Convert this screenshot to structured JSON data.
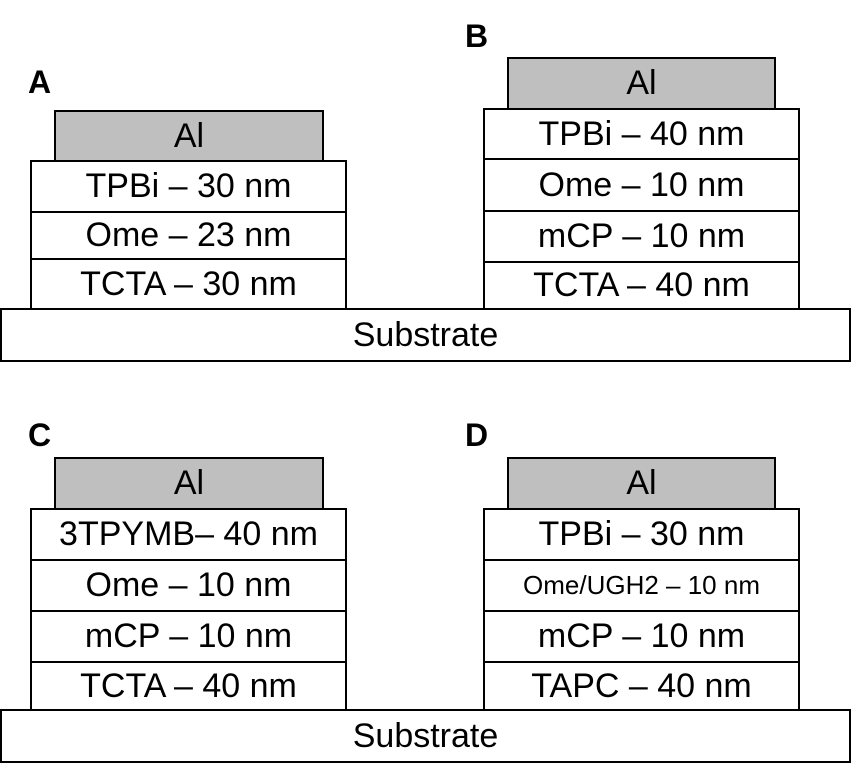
{
  "panels": {
    "a": {
      "label": "A",
      "metal": "Al",
      "layers": [
        "TPBi – 30 nm",
        "Ome – 23 nm",
        "TCTA – 30 nm"
      ]
    },
    "b": {
      "label": "B",
      "metal": "Al",
      "layers": [
        "TPBi – 40 nm",
        "Ome – 10 nm",
        "mCP – 10 nm",
        "TCTA – 40 nm"
      ]
    },
    "c": {
      "label": "C",
      "metal": "Al",
      "layers": [
        "3TPYMB– 40 nm",
        "Ome – 10 nm",
        "mCP – 10 nm",
        "TCTA – 40 nm"
      ]
    },
    "d": {
      "label": "D",
      "metal": "Al",
      "layers": [
        "TPBi – 30 nm",
        "Ome/UGH2 – 10 nm",
        "mCP – 10 nm",
        "TAPC – 40 nm"
      ]
    }
  },
  "substrate_top": "Substrate",
  "substrate_bottom": "Substrate",
  "colors": {
    "metal_fill": "#bfbfbf",
    "layer_fill": "#ffffff",
    "border": "#000000"
  }
}
